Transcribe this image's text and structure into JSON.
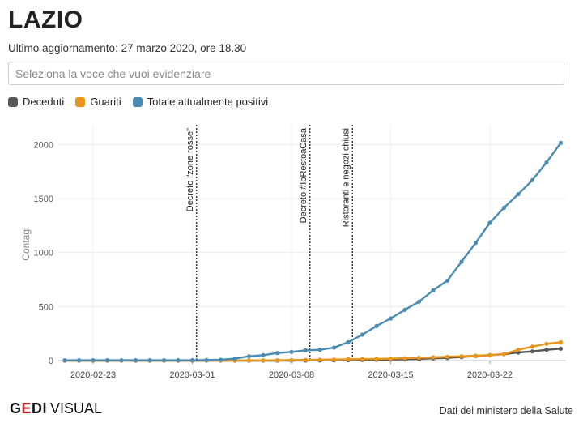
{
  "header": {
    "title": "LAZIO",
    "subtitle": "Ultimo aggiornamento: 27 marzo 2020, ore 18.30"
  },
  "selector": {
    "placeholder": "Seleziona la voce che vuoi evidenziare"
  },
  "footer": {
    "logo_gedi_g": "G",
    "logo_gedi_e": "E",
    "logo_gedi_di": "DI",
    "logo_visual": "VISUAL",
    "source": "Dati del ministero della Salute"
  },
  "chart_data": {
    "type": "line",
    "ylabel": "Contagi",
    "ylim": [
      0,
      2100
    ],
    "yticks": [
      0,
      500,
      1000,
      1500,
      2000
    ],
    "xticks": [
      {
        "label": "2020-02-23",
        "index": 2
      },
      {
        "label": "2020-03-01",
        "index": 9
      },
      {
        "label": "2020-03-08",
        "index": 16
      },
      {
        "label": "2020-03-15",
        "index": 23
      },
      {
        "label": "2020-03-22",
        "index": 30
      }
    ],
    "dates": [
      "2020-02-21",
      "2020-02-22",
      "2020-02-23",
      "2020-02-24",
      "2020-02-25",
      "2020-02-26",
      "2020-02-27",
      "2020-02-28",
      "2020-02-29",
      "2020-03-01",
      "2020-03-02",
      "2020-03-03",
      "2020-03-04",
      "2020-03-05",
      "2020-03-06",
      "2020-03-07",
      "2020-03-08",
      "2020-03-09",
      "2020-03-10",
      "2020-03-11",
      "2020-03-12",
      "2020-03-13",
      "2020-03-14",
      "2020-03-15",
      "2020-03-16",
      "2020-03-17",
      "2020-03-18",
      "2020-03-19",
      "2020-03-20",
      "2020-03-21",
      "2020-03-22",
      "2020-03-23",
      "2020-03-24",
      "2020-03-25",
      "2020-03-26",
      "2020-03-27"
    ],
    "series": [
      {
        "name": "Deceduti",
        "color": "#555555",
        "values": [
          0,
          0,
          0,
          0,
          0,
          0,
          0,
          0,
          0,
          0,
          0,
          0,
          0,
          0,
          0,
          0,
          1,
          1,
          2,
          3,
          4,
          6,
          8,
          10,
          13,
          16,
          21,
          25,
          33,
          43,
          50,
          60,
          75,
          85,
          100,
          110
        ]
      },
      {
        "name": "Guariti",
        "color": "#e8951d",
        "values": [
          0,
          0,
          0,
          0,
          0,
          0,
          0,
          0,
          0,
          0,
          1,
          1,
          1,
          2,
          2,
          3,
          5,
          6,
          8,
          10,
          12,
          14,
          16,
          18,
          22,
          26,
          30,
          35,
          40,
          45,
          50,
          60,
          100,
          130,
          155,
          170
        ]
      },
      {
        "name": "Totale attualmente positivi",
        "color": "#4a8bb3",
        "values": [
          3,
          3,
          3,
          3,
          3,
          3,
          3,
          3,
          3,
          3,
          5,
          8,
          18,
          40,
          50,
          70,
          80,
          95,
          100,
          120,
          170,
          240,
          320,
          390,
          470,
          545,
          650,
          740,
          915,
          1090,
          1275,
          1415,
          1540,
          1670,
          1835,
          2015
        ]
      }
    ],
    "annotations": [
      {
        "label": "Decreto \"zone rosse\"",
        "x_index": 9.3
      },
      {
        "label": "Decreto #IoRestoaCasa",
        "x_index": 17.3
      },
      {
        "label": "Ristoranti e negozi chiusi",
        "x_index": 20.3
      }
    ],
    "grid": true,
    "legend": "top-left"
  }
}
